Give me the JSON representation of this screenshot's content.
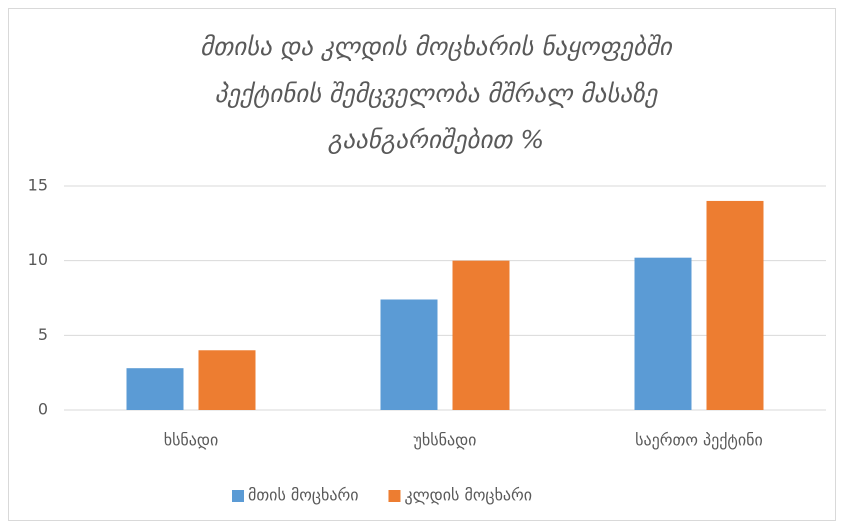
{
  "chart_data": {
    "type": "bar",
    "title": [
      "მთისა და კლდის მოცხარის  ნაყოფებში",
      "პექტინის შემცველობა მშრალ მასაზე",
      "გაანგარიშებით %"
    ],
    "categories": [
      "ხსნადი",
      "უხსნადი",
      "საერთო პექტინი"
    ],
    "series": [
      {
        "name": "მთის მოცხარი",
        "color": "#5b9bd5",
        "values": [
          2.8,
          7.4,
          10.2
        ]
      },
      {
        "name": "კლდის მოცხარი",
        "color": "#ed7d31",
        "values": [
          4.0,
          10.0,
          14.0
        ]
      }
    ],
    "ylim": [
      0,
      15
    ],
    "yticks": [
      0,
      5,
      10,
      15
    ],
    "grid": true,
    "legend": "bottom"
  }
}
